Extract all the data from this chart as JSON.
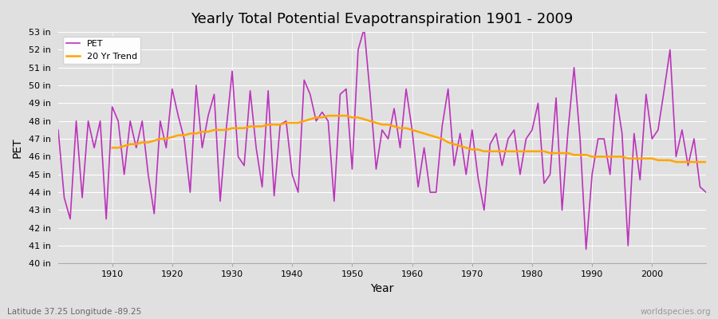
{
  "title": "Yearly Total Potential Evapotranspiration 1901 - 2009",
  "ylabel": "PET",
  "xlabel": "Year",
  "subtitle_left": "Latitude 37.25 Longitude -89.25",
  "subtitle_right": "worldspecies.org",
  "ylim": [
    40,
    53
  ],
  "yticks": [
    40,
    41,
    42,
    43,
    44,
    45,
    46,
    47,
    48,
    49,
    50,
    51,
    52,
    53
  ],
  "ytick_labels": [
    "40 in",
    "41 in",
    "42 in",
    "43 in",
    "44 in",
    "45 in",
    "46 in",
    "47 in",
    "48 in",
    "49 in",
    "50 in",
    "51 in",
    "52 in",
    "53 in"
  ],
  "background_color": "#e0e0e0",
  "plot_bg_color": "#e0e0e0",
  "pet_color": "#bb33bb",
  "trend_color": "#ffa500",
  "legend_pet": "PET",
  "legend_trend": "20 Yr Trend",
  "years": [
    1901,
    1902,
    1903,
    1904,
    1905,
    1906,
    1907,
    1908,
    1909,
    1910,
    1911,
    1912,
    1913,
    1914,
    1915,
    1916,
    1917,
    1918,
    1919,
    1920,
    1921,
    1922,
    1923,
    1924,
    1925,
    1926,
    1927,
    1928,
    1929,
    1930,
    1931,
    1932,
    1933,
    1934,
    1935,
    1936,
    1937,
    1938,
    1939,
    1940,
    1941,
    1942,
    1943,
    1944,
    1945,
    1946,
    1947,
    1948,
    1949,
    1950,
    1951,
    1952,
    1953,
    1954,
    1955,
    1956,
    1957,
    1958,
    1959,
    1960,
    1961,
    1962,
    1963,
    1964,
    1965,
    1966,
    1967,
    1968,
    1969,
    1970,
    1971,
    1972,
    1973,
    1974,
    1975,
    1976,
    1977,
    1978,
    1979,
    1980,
    1981,
    1982,
    1983,
    1984,
    1985,
    1986,
    1987,
    1988,
    1989,
    1990,
    1991,
    1992,
    1993,
    1994,
    1995,
    1996,
    1997,
    1998,
    1999,
    2000,
    2001,
    2002,
    2003,
    2004,
    2005,
    2006,
    2007,
    2008,
    2009
  ],
  "pet_values": [
    47.5,
    43.7,
    42.5,
    48.0,
    43.7,
    48.0,
    46.5,
    48.0,
    42.5,
    48.8,
    48.0,
    45.0,
    48.0,
    46.5,
    48.0,
    45.0,
    42.8,
    48.0,
    46.5,
    49.8,
    48.3,
    47.0,
    44.0,
    50.0,
    46.5,
    48.3,
    49.5,
    43.5,
    47.5,
    50.8,
    46.0,
    45.5,
    49.7,
    46.5,
    44.3,
    49.7,
    43.8,
    47.8,
    48.0,
    45.0,
    44.0,
    50.3,
    49.5,
    48.0,
    48.5,
    48.0,
    43.5,
    49.5,
    49.8,
    45.3,
    52.0,
    53.2,
    49.5,
    45.3,
    47.5,
    47.0,
    48.7,
    46.5,
    49.8,
    47.5,
    44.3,
    46.5,
    44.0,
    44.0,
    47.7,
    49.8,
    45.5,
    47.3,
    45.0,
    47.5,
    44.8,
    43.0,
    46.7,
    47.3,
    45.5,
    47.0,
    47.5,
    45.0,
    47.0,
    47.5,
    49.0,
    44.5,
    45.0,
    49.3,
    43.0,
    47.5,
    51.0,
    47.0,
    40.8,
    45.0,
    47.0,
    47.0,
    45.0,
    49.5,
    47.3,
    41.0,
    47.3,
    44.7,
    49.5,
    47.0,
    47.5,
    49.7,
    52.0,
    46.0,
    47.5,
    45.5,
    47.0,
    44.3,
    44.0
  ],
  "trend_years": [
    1910,
    1911,
    1912,
    1913,
    1914,
    1915,
    1916,
    1917,
    1918,
    1919,
    1920,
    1921,
    1922,
    1923,
    1924,
    1925,
    1926,
    1927,
    1928,
    1929,
    1930,
    1931,
    1932,
    1933,
    1934,
    1935,
    1936,
    1937,
    1938,
    1939,
    1940,
    1941,
    1942,
    1943,
    1944,
    1945,
    1946,
    1947,
    1948,
    1949,
    1950,
    1951,
    1952,
    1953,
    1954,
    1955,
    1956,
    1957,
    1958,
    1959,
    1960,
    1961,
    1962,
    1963,
    1964,
    1965,
    1966,
    1967,
    1968,
    1969,
    1970,
    1971,
    1972,
    1973,
    1974,
    1975,
    1976,
    1977,
    1978,
    1979,
    1980,
    1981,
    1982,
    1983,
    1984,
    1985,
    1986,
    1987,
    1988,
    1989,
    1990,
    1991,
    1992,
    1993,
    1994,
    1995,
    1996,
    1997,
    1998,
    1999,
    2000,
    2001,
    2002,
    2003,
    2004,
    2005,
    2006,
    2007,
    2008,
    2009
  ],
  "trend_values": [
    46.5,
    46.5,
    46.6,
    46.7,
    46.7,
    46.8,
    46.8,
    46.9,
    47.0,
    47.0,
    47.1,
    47.2,
    47.2,
    47.3,
    47.3,
    47.4,
    47.4,
    47.5,
    47.5,
    47.5,
    47.6,
    47.6,
    47.6,
    47.7,
    47.7,
    47.7,
    47.8,
    47.8,
    47.8,
    47.9,
    47.9,
    47.9,
    48.0,
    48.1,
    48.2,
    48.2,
    48.3,
    48.3,
    48.3,
    48.3,
    48.2,
    48.2,
    48.1,
    48.0,
    47.9,
    47.8,
    47.8,
    47.7,
    47.6,
    47.6,
    47.5,
    47.4,
    47.3,
    47.2,
    47.1,
    47.0,
    46.8,
    46.7,
    46.6,
    46.5,
    46.4,
    46.4,
    46.3,
    46.3,
    46.3,
    46.3,
    46.3,
    46.3,
    46.3,
    46.3,
    46.3,
    46.3,
    46.3,
    46.2,
    46.2,
    46.2,
    46.2,
    46.1,
    46.1,
    46.1,
    46.0,
    46.0,
    46.0,
    46.0,
    46.0,
    46.0,
    45.9,
    45.9,
    45.9,
    45.9,
    45.9,
    45.8,
    45.8,
    45.8,
    45.7,
    45.7,
    45.7,
    45.7,
    45.7,
    45.7
  ]
}
